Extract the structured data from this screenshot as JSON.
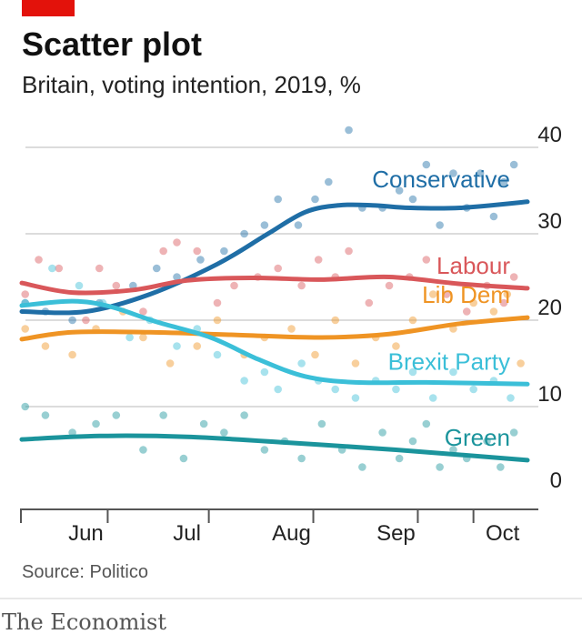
{
  "title": "Scatter plot",
  "subtitle": "Britain, voting intention, 2019, %",
  "source": "Source: Politico",
  "brand": "The Economist",
  "colors": {
    "accent": "#e3120b",
    "grid": "#b8b8b8",
    "axis": "#555555",
    "Conservative": "#1f6ea6",
    "Labour": "#d9575a",
    "Lib Dem": "#ef9424",
    "Brexit Party": "#3bbfd8",
    "Green": "#1b949c"
  },
  "chart_data": {
    "type": "scatter",
    "title": "Scatter plot",
    "subtitle": "Britain, voting intention, 2019, %",
    "x_ticks": [
      "Jun",
      "Jul",
      "Aug",
      "Sep",
      "Oct"
    ],
    "x_tick_dates": [
      "2019-06-01",
      "2019-07-01",
      "2019-08-01",
      "2019-09-01",
      "2019-10-01"
    ],
    "xlim": [
      "2019-05-13",
      "2019-10-10"
    ],
    "y_ticks": [
      0,
      10,
      20,
      30,
      40
    ],
    "ylim": [
      0,
      40
    ],
    "grid": true,
    "legend": "direct labels at right",
    "series": [
      {
        "name": "Conservative",
        "trend": [
          [
            "2019-05-13",
            21
          ],
          [
            "2019-06-01",
            21
          ],
          [
            "2019-06-20",
            23
          ],
          [
            "2019-07-10",
            26.5
          ],
          [
            "2019-07-25",
            30
          ],
          [
            "2019-08-05",
            32.5
          ],
          [
            "2019-08-15",
            33.3
          ],
          [
            "2019-08-25",
            33.3
          ],
          [
            "2019-09-05",
            33
          ],
          [
            "2019-09-20",
            33
          ],
          [
            "2019-10-10",
            33.7
          ]
        ],
        "points": [
          [
            "2019-05-14",
            22
          ],
          [
            "2019-05-20",
            21
          ],
          [
            "2019-05-28",
            20
          ],
          [
            "2019-06-05",
            22
          ],
          [
            "2019-06-15",
            24
          ],
          [
            "2019-06-22",
            26
          ],
          [
            "2019-06-28",
            25
          ],
          [
            "2019-07-05",
            27
          ],
          [
            "2019-07-12",
            28
          ],
          [
            "2019-07-18",
            30
          ],
          [
            "2019-07-24",
            31
          ],
          [
            "2019-07-28",
            34
          ],
          [
            "2019-08-03",
            31
          ],
          [
            "2019-08-08",
            34
          ],
          [
            "2019-08-12",
            36
          ],
          [
            "2019-08-18",
            42
          ],
          [
            "2019-08-22",
            33
          ],
          [
            "2019-08-28",
            33
          ],
          [
            "2019-09-02",
            35
          ],
          [
            "2019-09-06",
            34
          ],
          [
            "2019-09-10",
            38
          ],
          [
            "2019-09-14",
            31
          ],
          [
            "2019-09-18",
            37
          ],
          [
            "2019-09-22",
            33
          ],
          [
            "2019-09-26",
            37
          ],
          [
            "2019-09-30",
            32
          ],
          [
            "2019-10-03",
            36
          ],
          [
            "2019-10-06",
            38
          ]
        ]
      },
      {
        "name": "Labour",
        "trend": [
          [
            "2019-05-13",
            24.3
          ],
          [
            "2019-05-28",
            23.2
          ],
          [
            "2019-06-15",
            23.5
          ],
          [
            "2019-07-01",
            24.6
          ],
          [
            "2019-07-20",
            24.9
          ],
          [
            "2019-08-10",
            24.7
          ],
          [
            "2019-08-30",
            25
          ],
          [
            "2019-09-20",
            24.2
          ],
          [
            "2019-10-10",
            23.7
          ]
        ],
        "points": [
          [
            "2019-05-14",
            23
          ],
          [
            "2019-05-18",
            27
          ],
          [
            "2019-05-24",
            26
          ],
          [
            "2019-06-01",
            20
          ],
          [
            "2019-06-05",
            26
          ],
          [
            "2019-06-10",
            24
          ],
          [
            "2019-06-18",
            21
          ],
          [
            "2019-06-24",
            28
          ],
          [
            "2019-06-28",
            29
          ],
          [
            "2019-07-04",
            28
          ],
          [
            "2019-07-10",
            22
          ],
          [
            "2019-07-15",
            24
          ],
          [
            "2019-07-22",
            25
          ],
          [
            "2019-07-28",
            26
          ],
          [
            "2019-08-04",
            24
          ],
          [
            "2019-08-09",
            27
          ],
          [
            "2019-08-14",
            25
          ],
          [
            "2019-08-18",
            28
          ],
          [
            "2019-08-24",
            22
          ],
          [
            "2019-08-30",
            24
          ],
          [
            "2019-09-05",
            25
          ],
          [
            "2019-09-10",
            27
          ],
          [
            "2019-09-16",
            23
          ],
          [
            "2019-09-22",
            21
          ],
          [
            "2019-09-28",
            24
          ],
          [
            "2019-10-03",
            22
          ],
          [
            "2019-10-06",
            25
          ]
        ]
      },
      {
        "name": "Lib Dem",
        "trend": [
          [
            "2019-05-13",
            17.8
          ],
          [
            "2019-05-28",
            18.6
          ],
          [
            "2019-06-20",
            18.6
          ],
          [
            "2019-07-15",
            18.3
          ],
          [
            "2019-08-10",
            18
          ],
          [
            "2019-08-30",
            18.4
          ],
          [
            "2019-09-20",
            19.6
          ],
          [
            "2019-10-10",
            20.3
          ]
        ],
        "points": [
          [
            "2019-05-14",
            19
          ],
          [
            "2019-05-20",
            17
          ],
          [
            "2019-05-28",
            16
          ],
          [
            "2019-06-04",
            19
          ],
          [
            "2019-06-12",
            21
          ],
          [
            "2019-06-18",
            18
          ],
          [
            "2019-06-26",
            15
          ],
          [
            "2019-07-04",
            17
          ],
          [
            "2019-07-10",
            20
          ],
          [
            "2019-07-18",
            16
          ],
          [
            "2019-07-24",
            18
          ],
          [
            "2019-08-01",
            19
          ],
          [
            "2019-08-08",
            16
          ],
          [
            "2019-08-14",
            20
          ],
          [
            "2019-08-20",
            15
          ],
          [
            "2019-08-26",
            18
          ],
          [
            "2019-09-01",
            17
          ],
          [
            "2019-09-06",
            20
          ],
          [
            "2019-09-12",
            23
          ],
          [
            "2019-09-18",
            19
          ],
          [
            "2019-09-24",
            22
          ],
          [
            "2019-09-30",
            21
          ],
          [
            "2019-10-04",
            23
          ],
          [
            "2019-10-08",
            15
          ]
        ]
      },
      {
        "name": "Brexit Party",
        "trend": [
          [
            "2019-05-13",
            21.7
          ],
          [
            "2019-05-28",
            22.2
          ],
          [
            "2019-06-08",
            21.6
          ],
          [
            "2019-06-22",
            19.8
          ],
          [
            "2019-07-08",
            18
          ],
          [
            "2019-07-22",
            15.5
          ],
          [
            "2019-08-05",
            13.5
          ],
          [
            "2019-08-20",
            12.8
          ],
          [
            "2019-09-10",
            12.8
          ],
          [
            "2019-10-10",
            12.6
          ]
        ],
        "points": [
          [
            "2019-05-14",
            22
          ],
          [
            "2019-05-22",
            26
          ],
          [
            "2019-05-30",
            24
          ],
          [
            "2019-06-06",
            22
          ],
          [
            "2019-06-14",
            18
          ],
          [
            "2019-06-20",
            20
          ],
          [
            "2019-06-28",
            17
          ],
          [
            "2019-07-04",
            19
          ],
          [
            "2019-07-10",
            16
          ],
          [
            "2019-07-18",
            13
          ],
          [
            "2019-07-24",
            14
          ],
          [
            "2019-07-28",
            12
          ],
          [
            "2019-08-04",
            15
          ],
          [
            "2019-08-09",
            13
          ],
          [
            "2019-08-14",
            12
          ],
          [
            "2019-08-20",
            11
          ],
          [
            "2019-08-26",
            13
          ],
          [
            "2019-09-01",
            12
          ],
          [
            "2019-09-06",
            14
          ],
          [
            "2019-09-12",
            11
          ],
          [
            "2019-09-18",
            14
          ],
          [
            "2019-09-24",
            12
          ],
          [
            "2019-09-30",
            13
          ],
          [
            "2019-10-05",
            11
          ]
        ]
      },
      {
        "name": "Green",
        "trend": [
          [
            "2019-05-13",
            6.2
          ],
          [
            "2019-06-05",
            6.6
          ],
          [
            "2019-07-01",
            6.5
          ],
          [
            "2019-08-01",
            5.8
          ],
          [
            "2019-09-01",
            5
          ],
          [
            "2019-10-10",
            3.8
          ]
        ],
        "points": [
          [
            "2019-05-14",
            10
          ],
          [
            "2019-05-20",
            9
          ],
          [
            "2019-05-28",
            7
          ],
          [
            "2019-06-04",
            8
          ],
          [
            "2019-06-10",
            9
          ],
          [
            "2019-06-18",
            5
          ],
          [
            "2019-06-24",
            9
          ],
          [
            "2019-06-30",
            4
          ],
          [
            "2019-07-06",
            8
          ],
          [
            "2019-07-12",
            7
          ],
          [
            "2019-07-18",
            9
          ],
          [
            "2019-07-24",
            5
          ],
          [
            "2019-07-30",
            6
          ],
          [
            "2019-08-04",
            4
          ],
          [
            "2019-08-10",
            8
          ],
          [
            "2019-08-16",
            5
          ],
          [
            "2019-08-22",
            3
          ],
          [
            "2019-08-28",
            7
          ],
          [
            "2019-09-02",
            4
          ],
          [
            "2019-09-06",
            6
          ],
          [
            "2019-09-10",
            8
          ],
          [
            "2019-09-14",
            3
          ],
          [
            "2019-09-18",
            5
          ],
          [
            "2019-09-22",
            4
          ],
          [
            "2019-09-28",
            6
          ],
          [
            "2019-10-02",
            3
          ],
          [
            "2019-10-06",
            7
          ]
        ]
      }
    ]
  }
}
